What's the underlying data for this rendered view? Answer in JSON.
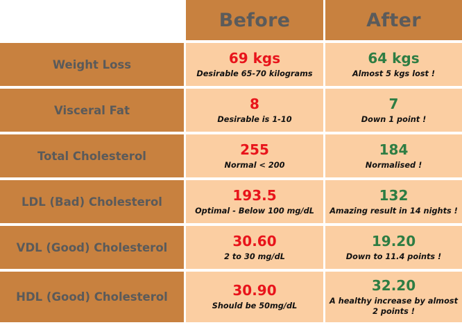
{
  "header": {
    "before": "Before",
    "after": "After"
  },
  "rows": [
    {
      "label": "Weight Loss",
      "before_value": "69 kgs",
      "before_note": "Desirable 65-70 kilograms",
      "after_value": "64 kgs",
      "after_note": "Almost 5 kgs lost !"
    },
    {
      "label": "Visceral  Fat",
      "before_value": "8",
      "before_note": "Desirable is 1-10",
      "after_value": "7",
      "after_note": "Down 1 point !"
    },
    {
      "label": "Total Cholesterol",
      "before_value": "255",
      "before_note": "Normal < 200",
      "after_value": "184",
      "after_note": "Normalised !"
    },
    {
      "label": "LDL (Bad) Cholesterol",
      "before_value": "193.5",
      "before_note": "Optimal - Below 100 mg/dL",
      "after_value": "132",
      "after_note": "Amazing result in 14 nights !"
    },
    {
      "label": "VDL (Good) Cholesterol",
      "before_value": "30.60",
      "before_note": "2 to 30 mg/dL",
      "after_value": "19.20",
      "after_note": "Down to 11.4 points !"
    },
    {
      "label": "HDL (Good) Cholesterol",
      "before_value": "30.90",
      "before_note": "Should be 50mg/dL",
      "after_value": "32.20",
      "after_note": "A healthy increase by almost 2 points !"
    }
  ],
  "colors": {
    "header_bg": "#c8813f",
    "cell_bg": "#fbcea2",
    "before_value": "#e8141b",
    "after_value": "#2e7d43",
    "label_text": "#5a5a5a"
  }
}
